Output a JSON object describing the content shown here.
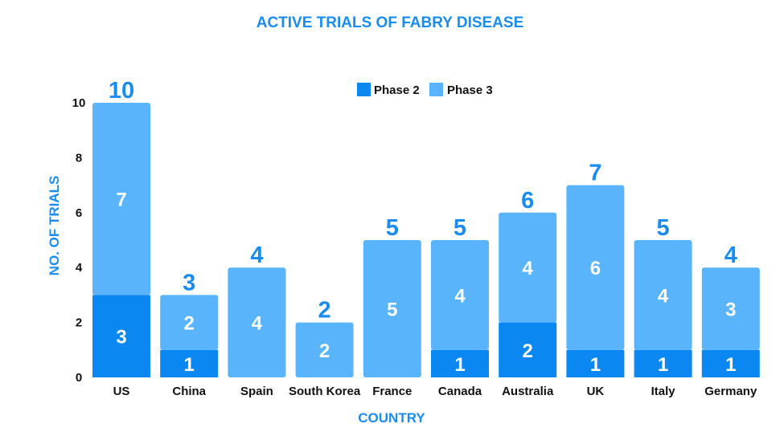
{
  "colors": {
    "phase2": "#0a87f0",
    "phase3": "#5ab4fb",
    "accent": "#1a8cf0",
    "text": "#111111"
  },
  "chart_data": {
    "type": "bar",
    "stacked": true,
    "title": "ACTIVE TRIALS OF FABRY DISEASE",
    "xlabel": "COUNTRY",
    "ylabel": "NO. OF TRIALS",
    "ylim": [
      0,
      10
    ],
    "yticks": [
      "0",
      "2",
      "4",
      "6",
      "8",
      "10"
    ],
    "legend_position": "top-center",
    "categories": [
      "US",
      "China",
      "Spain",
      "South Korea",
      "France",
      "Canada",
      "Australia",
      "UK",
      "Italy",
      "Germany"
    ],
    "series": [
      {
        "name": "Phase 2",
        "values": [
          3,
          1,
          0,
          0,
          0,
          1,
          2,
          1,
          1,
          1
        ]
      },
      {
        "name": "Phase 3",
        "values": [
          7,
          2,
          4,
          2,
          5,
          4,
          4,
          6,
          4,
          3
        ]
      }
    ],
    "totals": [
      10,
      3,
      4,
      2,
      5,
      5,
      6,
      7,
      5,
      4
    ]
  }
}
